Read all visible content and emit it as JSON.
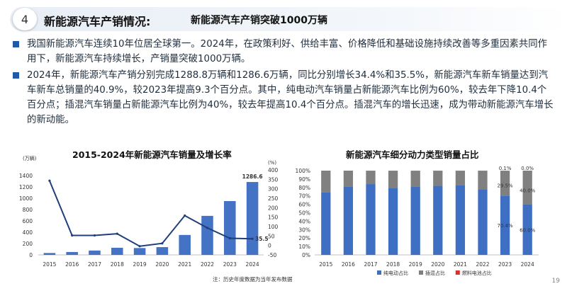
{
  "header": {
    "number": "4",
    "title": "新能源汽车产销情况:",
    "subtitle": "新能源汽车产销突破1000万辆"
  },
  "bullets": [
    "我国新能源汽车连续10年位居全球第一。2024年，在政策利好、供给丰富、价格降低和基础设施持续改善等多重因素共同作用下，新能源汽车持续增长，产销量突破1000万辆。",
    "2024年，新能源汽车产销分别完成1288.8万辆和1286.6万辆，同比分别增长34.4%和35.5%，新能源汽车新车销量达到汽车新车总销量的40.9%，较2023年提高9.3个百分点。其中，纯电动汽车销量占新能源汽车比例为60%，较去年下降10.4个百分点；插混汽车销量占新能源汽车比例为40%，较去年提高10.4个百分点。插混汽车的增长迅速，成为带动新能源汽车增长的新动能。"
  ],
  "footnote": "注：历史年度数据为当年发布数据",
  "page_number": "19",
  "colors": {
    "bar": "#4472c4",
    "line": "#1f3f7a",
    "bev": "#3f6fc2",
    "phev": "#808080",
    "fcev": "#d9302a"
  },
  "chart_data": [
    {
      "type": "bar",
      "title": "2015-2024年新能源汽车销量及增长率",
      "y_unit": "(万辆)",
      "y2_unit": "(%)",
      "categories": [
        "2015",
        "2016",
        "2017",
        "2018",
        "2019",
        "2020",
        "2021",
        "2022",
        "2023",
        "2024"
      ],
      "ylim": [
        0,
        1500
      ],
      "yticks": [
        "0",
        "200",
        "400",
        "600",
        "800",
        "1000",
        "1200",
        "1400"
      ],
      "y2lim": [
        -50,
        400
      ],
      "y2ticks": [
        "-50",
        "0",
        "50",
        "100",
        "150",
        "200",
        "250",
        "300",
        "350",
        "400"
      ],
      "series": [
        {
          "type": "bar",
          "values": [
            33,
            51,
            77,
            126,
            121,
            137,
            352,
            689,
            950,
            1286.6
          ]
        },
        {
          "type": "line",
          "axis": "y2",
          "values": [
            343,
            53,
            53,
            62,
            -4,
            11,
            158,
            93,
            38,
            35.5
          ]
        }
      ],
      "annotations": [
        {
          "series": 0,
          "index": 9,
          "text": "1286.6"
        },
        {
          "series": 1,
          "index": 9,
          "text": "35.5"
        }
      ]
    },
    {
      "type": "stacked_bar",
      "title": "新能源汽车细分动力类型销量占比",
      "categories": [
        "2015",
        "2016",
        "2017",
        "2018",
        "2019",
        "2020",
        "2021",
        "2022",
        "2023",
        "2024"
      ],
      "ylim": [
        0,
        100
      ],
      "yticks": [
        "0%",
        "10%",
        "20%",
        "30%",
        "40%",
        "50%",
        "60%",
        "70%",
        "80%",
        "90%",
        "100%"
      ],
      "series": [
        {
          "name": "纯电动占比",
          "values": [
            74,
            81,
            84,
            79,
            81,
            82,
            83,
            78,
            70.4,
            60.0
          ]
        },
        {
          "name": "插混占比",
          "values": [
            26,
            19,
            15.8,
            20.8,
            18.8,
            17.9,
            16.9,
            21.9,
            29.5,
            40.0
          ]
        },
        {
          "name": "燃料电池占比",
          "values": [
            0,
            0,
            0.2,
            0.2,
            0.2,
            0.1,
            0.1,
            0.1,
            0.1,
            0.0
          ]
        }
      ],
      "annotations": [
        {
          "series": 0,
          "index": 8,
          "text": "70.4%"
        },
        {
          "series": 1,
          "index": 8,
          "text": "29.5%"
        },
        {
          "series": 2,
          "index": 8,
          "text": "0.1%"
        },
        {
          "series": 0,
          "index": 9,
          "text": "60.0%"
        },
        {
          "series": 1,
          "index": 9,
          "text": "40.0%"
        },
        {
          "series": 2,
          "index": 9,
          "text": "0.0%"
        }
      ]
    }
  ]
}
